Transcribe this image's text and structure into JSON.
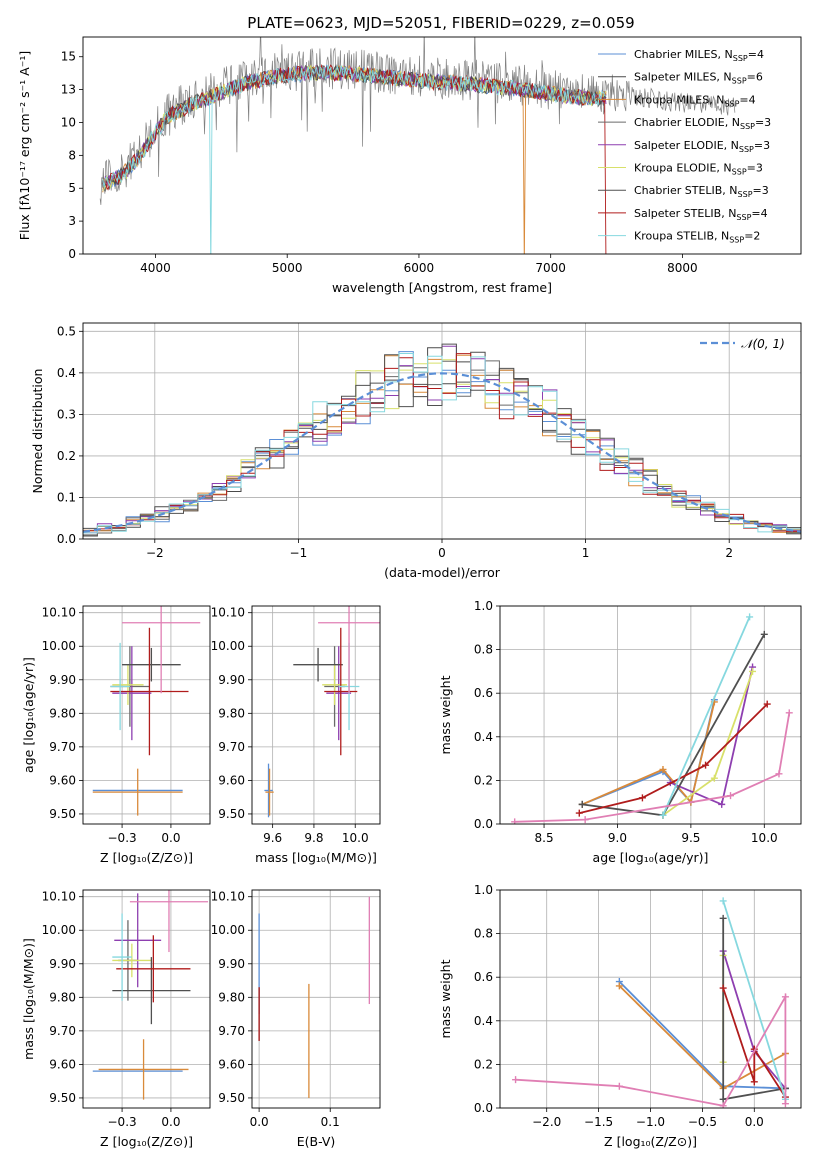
{
  "title": "PLATE=0623, MJD=52051, FIBERID=0229, z=0.059",
  "models": [
    {
      "name": "Chabrier MILES",
      "nssp": "4",
      "color": "#5b8fd6"
    },
    {
      "name": "Salpeter MILES",
      "nssp": "6",
      "color": "#4a4a4a"
    },
    {
      "name": "Kroupa MILES",
      "nssp": "4",
      "color": "#d98a3a"
    },
    {
      "name": "Chabrier ELODIE",
      "nssp": "3",
      "color": "#6a6a6a"
    },
    {
      "name": "Salpeter ELODIE",
      "nssp": "3",
      "color": "#8e3fb0"
    },
    {
      "name": "Kroupa ELODIE",
      "nssp": "3",
      "color": "#d8e06a"
    },
    {
      "name": "Chabrier STELIB",
      "nssp": "3",
      "color": "#505050"
    },
    {
      "name": "Salpeter STELIB",
      "nssp": "4",
      "color": "#b01c1c"
    },
    {
      "name": "Kroupa STELIB",
      "nssp": "2",
      "color": "#86d8df"
    }
  ],
  "extra_color": "#e07fb4",
  "chart_data": [
    {
      "id": "spectrum",
      "type": "line",
      "xlabel": "wavelength [Angstrom, rest frame]",
      "ylabel": "Flux [fλ10⁻¹⁷ erg cm⁻² s⁻¹ A⁻¹]",
      "xlim": [
        3450,
        8900
      ],
      "ylim": [
        0,
        16.5
      ],
      "xticks": [
        4000,
        5000,
        6000,
        7000,
        8000
      ],
      "yticks": [
        0.0,
        2.5,
        5.0,
        7.5,
        10.0,
        12.5,
        15.0
      ],
      "continuum": [
        [
          3580,
          5.5
        ],
        [
          3700,
          6.0
        ],
        [
          3800,
          6.8
        ],
        [
          3900,
          8.0
        ],
        [
          4000,
          9.5
        ],
        [
          4100,
          10.8
        ],
        [
          4300,
          11.8
        ],
        [
          4500,
          12.6
        ],
        [
          4700,
          13.3
        ],
        [
          4900,
          13.8
        ],
        [
          5100,
          14.0
        ],
        [
          5300,
          14.1
        ],
        [
          5500,
          14.0
        ],
        [
          5800,
          13.7
        ],
        [
          6100,
          13.4
        ],
        [
          6400,
          13.2
        ],
        [
          6800,
          12.8
        ],
        [
          7200,
          12.2
        ],
        [
          7600,
          12.0
        ],
        [
          8000,
          11.5
        ],
        [
          8300,
          11.3
        ],
        [
          8400,
          11.2
        ]
      ],
      "legend_position": "upper right"
    },
    {
      "id": "residuals",
      "type": "histogram",
      "xlabel": "(data-model)/error",
      "ylabel": "Normed distribution",
      "xlim": [
        -2.5,
        2.5
      ],
      "ylim": [
        0,
        0.52
      ],
      "xticks": [
        -2,
        -1,
        0,
        1,
        2
      ],
      "yticks": [
        0.0,
        0.1,
        0.2,
        0.3,
        0.4,
        0.5
      ],
      "bin_width": 0.1,
      "reference_label": "𝒩(0, 1)",
      "legend_position": "upper right"
    },
    {
      "id": "z_age",
      "type": "errorbar",
      "xlabel": "Z [log₁₀(Z/Z⊙)]",
      "ylabel": "age  [log₁₀(age/yr)]",
      "xlim": [
        -0.45,
        0.2
      ],
      "ylim": [
        9.47,
        10.12
      ],
      "xticks": [
        -0.25,
        0.0
      ],
      "yticks": [
        9.5,
        9.6,
        9.7,
        9.8,
        9.9,
        10.0,
        10.1
      ],
      "points": [
        {
          "c": 0,
          "x": -0.17,
          "xe": 0.23,
          "y": 9.57,
          "ye": 0.0
        },
        {
          "c": 2,
          "x": -0.17,
          "xe": 0.23,
          "y": 9.565,
          "ye": 0.07
        },
        {
          "c": 3,
          "x": -0.21,
          "xe": 0.1,
          "y": 9.88,
          "ye": 0.12
        },
        {
          "c": 4,
          "x": -0.2,
          "xe": 0.1,
          "y": 9.86,
          "ye": 0.14
        },
        {
          "c": 5,
          "x": -0.22,
          "xe": 0.08,
          "y": 9.885,
          "ye": 0.06
        },
        {
          "c": 6,
          "x": -0.1,
          "xe": 0.15,
          "y": 9.945,
          "ye": 0.05
        },
        {
          "c": 7,
          "x": -0.11,
          "xe": 0.2,
          "y": 9.865,
          "ye": 0.19
        },
        {
          "c": 8,
          "x": -0.26,
          "xe": 0.05,
          "y": 9.88,
          "ye": 0.13
        },
        {
          "c": 9,
          "x": -0.05,
          "xe": 0.2,
          "y": 10.07,
          "ye": 0.21
        }
      ]
    },
    {
      "id": "mass_age",
      "type": "errorbar",
      "xlabel": "mass [log₁₀(M/M⊙)]",
      "ylabel": "",
      "xlim": [
        9.5,
        10.12
      ],
      "ylim": [
        9.47,
        10.12
      ],
      "xticks": [
        9.6,
        9.8,
        10.0
      ],
      "yticks": [
        9.5,
        9.6,
        9.7,
        9.8,
        9.9,
        10.0,
        10.1
      ],
      "points": [
        {
          "c": 0,
          "x": 9.58,
          "xe": 0.02,
          "y": 9.57,
          "ye": 0.08
        },
        {
          "c": 2,
          "x": 9.585,
          "xe": 0.02,
          "y": 9.565,
          "ye": 0.07
        },
        {
          "c": 3,
          "x": 9.9,
          "xe": 0.05,
          "y": 9.88,
          "ye": 0.12
        },
        {
          "c": 4,
          "x": 9.92,
          "xe": 0.06,
          "y": 9.86,
          "ye": 0.14
        },
        {
          "c": 5,
          "x": 9.9,
          "xe": 0.06,
          "y": 9.885,
          "ye": 0.06
        },
        {
          "c": 6,
          "x": 9.82,
          "xe": 0.12,
          "y": 9.945,
          "ye": 0.05
        },
        {
          "c": 7,
          "x": 9.93,
          "xe": 0.08,
          "y": 9.865,
          "ye": 0.19
        },
        {
          "c": 8,
          "x": 9.97,
          "xe": 0.05,
          "y": 9.88,
          "ye": 0.13
        },
        {
          "c": 9,
          "x": 9.97,
          "xe": 0.15,
          "y": 10.07,
          "ye": 0.21
        }
      ]
    },
    {
      "id": "age_weight",
      "type": "line",
      "xlabel": "age  [log₁₀(age/yr)]",
      "ylabel": "mass weight",
      "xlim": [
        8.2,
        10.25
      ],
      "ylim": [
        0,
        1.0
      ],
      "xticks": [
        8.5,
        9.0,
        9.5,
        10.0
      ],
      "yticks": [
        0.0,
        0.2,
        0.4,
        0.6,
        0.8,
        1.0
      ],
      "series": [
        {
          "c": 0,
          "x": [
            8.76,
            9.31,
            9.5,
            9.66
          ],
          "y": [
            0.09,
            0.24,
            0.1,
            0.57
          ]
        },
        {
          "c": 2,
          "x": [
            8.76,
            9.31,
            9.5,
            9.66
          ],
          "y": [
            0.09,
            0.25,
            0.1,
            0.56
          ]
        },
        {
          "c": 4,
          "x": [
            9.36,
            9.71,
            9.92
          ],
          "y": [
            0.19,
            0.09,
            0.72
          ]
        },
        {
          "c": 5,
          "x": [
            9.31,
            9.66,
            9.92
          ],
          "y": [
            0.04,
            0.21,
            0.7
          ]
        },
        {
          "c": 6,
          "x": [
            8.76,
            9.31,
            10.0
          ],
          "y": [
            0.09,
            0.04,
            0.87
          ]
        },
        {
          "c": 7,
          "x": [
            8.74,
            9.17,
            9.6,
            10.02
          ],
          "y": [
            0.05,
            0.12,
            0.27,
            0.55
          ]
        },
        {
          "c": 8,
          "x": [
            9.31,
            9.9
          ],
          "y": [
            0.04,
            0.95
          ]
        },
        {
          "c": 9,
          "x": [
            8.3,
            8.78,
            9.77,
            10.1,
            10.17
          ],
          "y": [
            0.01,
            0.02,
            0.13,
            0.23,
            0.51
          ]
        }
      ]
    },
    {
      "id": "z_mass",
      "type": "errorbar",
      "xlabel": "Z [log₁₀(Z/Z⊙)]",
      "ylabel": "mass [log₁₀(M/M⊙)]",
      "xlim": [
        -0.45,
        0.2
      ],
      "ylim": [
        9.47,
        10.12
      ],
      "xticks": [
        -0.25,
        0.0
      ],
      "yticks": [
        9.5,
        9.6,
        9.7,
        9.8,
        9.9,
        10.0,
        10.1
      ],
      "points": [
        {
          "c": 0,
          "x": -0.17,
          "xe": 0.23,
          "y": 9.58,
          "ye": 0.0
        },
        {
          "c": 2,
          "x": -0.14,
          "xe": 0.23,
          "y": 9.585,
          "ye": 0.09
        },
        {
          "c": 3,
          "x": -0.22,
          "xe": 0.05,
          "y": 9.91,
          "ye": 0.12
        },
        {
          "c": 4,
          "x": -0.17,
          "xe": 0.12,
          "y": 9.97,
          "ye": 0.14
        },
        {
          "c": 5,
          "x": -0.2,
          "xe": 0.1,
          "y": 9.91,
          "ye": 0.05
        },
        {
          "c": 6,
          "x": -0.1,
          "xe": 0.2,
          "y": 9.82,
          "ye": 0.1
        },
        {
          "c": 7,
          "x": -0.09,
          "xe": 0.19,
          "y": 9.885,
          "ye": 0.1
        },
        {
          "c": 8,
          "x": -0.25,
          "xe": 0.05,
          "y": 9.92,
          "ye": 0.13
        },
        {
          "c": 9,
          "x": -0.01,
          "xe": 0.2,
          "y": 10.085,
          "ye": 0.15
        }
      ]
    },
    {
      "id": "ebv",
      "type": "errorbar",
      "xlabel": "E(B-V)",
      "ylabel": "",
      "xlim": [
        -0.01,
        0.17
      ],
      "ylim": [
        9.47,
        10.12
      ],
      "xticks": [
        0.0,
        0.1
      ],
      "yticks": [
        9.5,
        9.6,
        9.7,
        9.8,
        9.9,
        10.0,
        10.1
      ],
      "points": [
        {
          "c": 0,
          "x": 0.0,
          "xe": 0.0,
          "y": 9.9,
          "ye": 0.15
        },
        {
          "c": 3,
          "x": 0.0,
          "xe": 0.0,
          "y": 9.75,
          "ye": 0.08
        },
        {
          "c": 7,
          "x": 0.0,
          "xe": 0.0,
          "y": 9.75,
          "ye": 0.08
        },
        {
          "c": 2,
          "x": 0.07,
          "xe": 0.0,
          "y": 9.67,
          "ye": 0.17
        },
        {
          "c": 9,
          "x": 0.155,
          "xe": 0.0,
          "y": 9.94,
          "ye": 0.16
        }
      ]
    },
    {
      "id": "z_weight",
      "type": "line",
      "xlabel": "Z [log₁₀(Z/Z⊙)]",
      "ylabel": "mass weight",
      "xlim": [
        -2.45,
        0.45
      ],
      "ylim": [
        0,
        1.0
      ],
      "xticks": [
        -2.0,
        -1.5,
        -1.0,
        -0.5,
        0.0
      ],
      "yticks": [
        0.0,
        0.2,
        0.4,
        0.6,
        0.8,
        1.0
      ],
      "series": [
        {
          "c": 0,
          "x": [
            -1.3,
            -0.3,
            0.3
          ],
          "y": [
            0.58,
            0.1,
            0.09
          ]
        },
        {
          "c": 2,
          "x": [
            -1.3,
            -0.3,
            0.3
          ],
          "y": [
            0.56,
            0.09,
            0.25
          ]
        },
        {
          "c": 4,
          "x": [
            -0.3,
            0.0,
            0.3
          ],
          "y": [
            0.72,
            0.26,
            0.09
          ]
        },
        {
          "c": 5,
          "x": [
            -0.3,
            -0.3
          ],
          "y": [
            0.7,
            0.21
          ]
        },
        {
          "c": 6,
          "x": [
            -0.3,
            -0.3,
            0.3
          ],
          "y": [
            0.87,
            0.04,
            0.09
          ]
        },
        {
          "c": 7,
          "x": [
            -0.3,
            0.0,
            0.0,
            0.3
          ],
          "y": [
            0.55,
            0.12,
            0.27,
            0.05
          ]
        },
        {
          "c": 8,
          "x": [
            -0.3,
            0.3
          ],
          "y": [
            0.95,
            0.04
          ]
        },
        {
          "c": 9,
          "x": [
            -2.3,
            -1.3,
            -0.3,
            0.3,
            0.3
          ],
          "y": [
            0.13,
            0.1,
            0.01,
            0.51,
            0.02
          ]
        }
      ]
    }
  ]
}
